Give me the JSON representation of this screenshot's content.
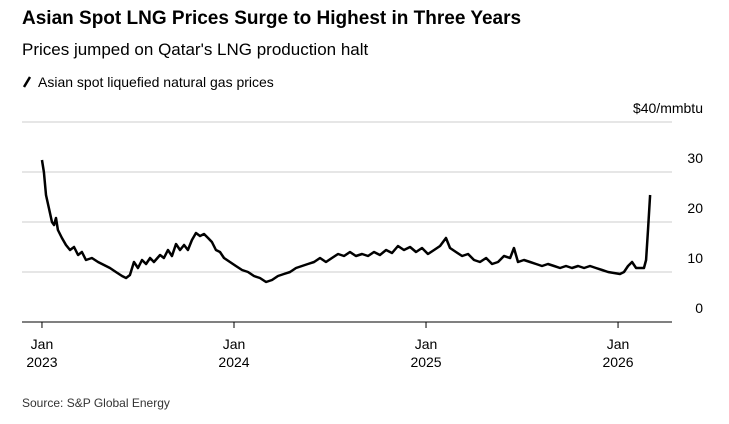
{
  "chart_data": {
    "type": "line",
    "title": "Asian Spot LNG Prices Surge to Highest in Three Years",
    "subtitle": "Prices jumped on Qatar's LNG production halt",
    "source": "Source: S&P Global Energy",
    "x": [
      2023.0,
      2023.01,
      2023.021,
      2023.036,
      2023.052,
      2023.063,
      2023.073,
      2023.083,
      2023.104,
      2023.125,
      2023.146,
      2023.167,
      2023.188,
      2023.208,
      2023.229,
      2023.26,
      2023.292,
      2023.323,
      2023.354,
      2023.385,
      2023.417,
      2023.438,
      2023.458,
      2023.479,
      2023.5,
      2023.521,
      2023.542,
      2023.563,
      2023.583,
      2023.615,
      2023.635,
      2023.656,
      2023.677,
      2023.698,
      2023.719,
      2023.74,
      2023.76,
      2023.781,
      2023.802,
      2023.823,
      2023.844,
      2023.865,
      2023.885,
      2023.906,
      2023.927,
      2023.948,
      2023.979,
      2024.01,
      2024.042,
      2024.073,
      2024.104,
      2024.135,
      2024.167,
      2024.198,
      2024.229,
      2024.26,
      2024.292,
      2024.323,
      2024.354,
      2024.385,
      2024.417,
      2024.448,
      2024.479,
      2024.51,
      2024.542,
      2024.573,
      2024.604,
      2024.635,
      2024.667,
      2024.698,
      2024.729,
      2024.76,
      2024.792,
      2024.823,
      2024.854,
      2024.885,
      2024.917,
      2024.948,
      2024.979,
      2025.01,
      2025.042,
      2025.073,
      2025.104,
      2025.125,
      2025.156,
      2025.188,
      2025.219,
      2025.25,
      2025.281,
      2025.313,
      2025.344,
      2025.375,
      2025.406,
      2025.438,
      2025.458,
      2025.479,
      2025.51,
      2025.542,
      2025.573,
      2025.604,
      2025.635,
      2025.667,
      2025.698,
      2025.729,
      2025.76,
      2025.792,
      2025.823,
      2025.854,
      2025.885,
      2025.917,
      2025.948,
      2025.979,
      2026.01,
      2026.031,
      2026.052,
      2026.073,
      2026.094,
      2026.115,
      2026.135,
      2026.146,
      2026.156,
      2026.167
    ],
    "series": [
      {
        "name": "Asian spot liquefied natural gas prices",
        "color": "#000000",
        "values": [
          32.4,
          30,
          25.4,
          22.8,
          20,
          19.4,
          20.8,
          18.4,
          16.8,
          15.4,
          14.4,
          15,
          13.4,
          14,
          12.4,
          12.8,
          12,
          11.4,
          10.8,
          10,
          9.2,
          8.8,
          9.4,
          12,
          10.8,
          12.4,
          11.6,
          12.8,
          12,
          13.4,
          12.8,
          14.4,
          13.2,
          15.6,
          14.4,
          15.4,
          14.4,
          16.4,
          17.8,
          17.2,
          17.6,
          16.8,
          16,
          14.4,
          14,
          12.8,
          12,
          11.2,
          10.4,
          10,
          9.2,
          8.8,
          8,
          8.4,
          9.2,
          9.6,
          10,
          10.8,
          11.2,
          11.6,
          12,
          12.8,
          12,
          12.8,
          13.6,
          13.2,
          14,
          13.2,
          13.6,
          13.2,
          14,
          13.4,
          14.4,
          13.8,
          15.2,
          14.4,
          15,
          14,
          14.8,
          13.6,
          14.4,
          15.2,
          16.8,
          14.8,
          14,
          13.2,
          13.6,
          12.4,
          12,
          12.8,
          11.6,
          12,
          13.2,
          12.8,
          14.8,
          12,
          12.4,
          12,
          11.6,
          11.2,
          11.6,
          11.2,
          10.8,
          11.2,
          10.8,
          11.2,
          10.8,
          11.2,
          10.8,
          10.4,
          10,
          9.8,
          9.6,
          10,
          11.2,
          12,
          10.8,
          10.8,
          10.8,
          12.4,
          18.4,
          25.4
        ]
      }
    ],
    "xlim": [
      2022.896,
      2026.281
    ],
    "xticks": [
      {
        "value": 2023,
        "label": "Jan 2023"
      },
      {
        "value": 2024,
        "label": "Jan 2024"
      },
      {
        "value": 2025,
        "label": "Jan 2025"
      },
      {
        "value": 2026,
        "label": "Jan 2026"
      }
    ],
    "ylim": [
      0,
      40
    ],
    "yticks": [
      0,
      10,
      20,
      30,
      {
        "value": 40,
        "label": "$40/mmbtu"
      }
    ],
    "grid": true
  }
}
